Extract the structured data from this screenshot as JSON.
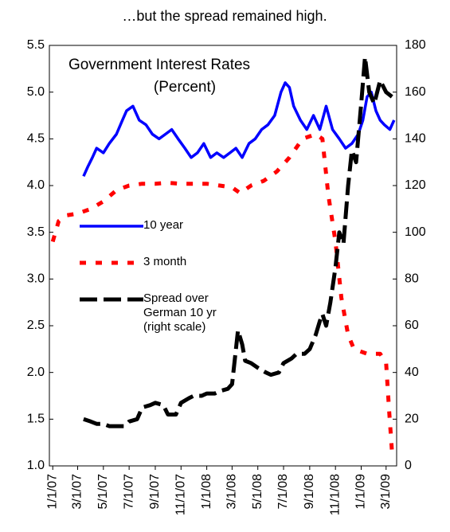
{
  "chart_data": {
    "type": "line",
    "caption": "…but the spread remained high.",
    "title": "Government Interest Rates",
    "subtitle": "(Percent)",
    "xlim": [
      "12/24/06",
      "3/26/09"
    ],
    "xticks": [
      "1/1/07",
      "3/1/07",
      "5/1/07",
      "7/1/07",
      "9/1/07",
      "11/1/07",
      "1/1/08",
      "3/1/08",
      "5/1/08",
      "7/1/08",
      "9/1/08",
      "11/1/08",
      "1/1/09",
      "3/1/09"
    ],
    "ylim": [
      1.0,
      5.5
    ],
    "yticks": [
      {
        "value": 1.0,
        "label": "1.0"
      },
      1.5,
      {
        "value": 2.0,
        "label": "2.0"
      },
      2.5,
      {
        "value": 3.0,
        "label": "3.0"
      },
      3.5,
      {
        "value": 4.0,
        "label": "4.0"
      },
      4.5,
      {
        "value": 5.0,
        "label": "5.0"
      },
      5.5
    ],
    "y2lim": [
      0,
      180
    ],
    "y2ticks": [
      0,
      20,
      40,
      60,
      80,
      100,
      120,
      140,
      160,
      180
    ],
    "series": [
      {
        "name": "10 year",
        "color": "#0000ff",
        "style": "solid",
        "x": [
          "3/15/07",
          "3/25/07",
          "4/5/07",
          "4/15/07",
          "5/1/07",
          "5/15/07",
          "6/1/07",
          "6/15/07",
          "6/25/07",
          "7/10/07",
          "7/25/07",
          "8/10/07",
          "8/25/07",
          "9/10/07",
          "9/25/07",
          "10/10/07",
          "10/25/07",
          "11/10/07",
          "11/25/07",
          "12/10/07",
          "12/25/07",
          "1/10/08",
          "1/25/08",
          "2/10/08",
          "2/25/08",
          "3/10/08",
          "3/25/08",
          "4/10/08",
          "4/25/08",
          "5/10/08",
          "5/25/08",
          "6/10/08",
          "6/25/08",
          "7/5/08",
          "7/15/08",
          "7/25/08",
          "8/10/08",
          "8/25/08",
          "9/10/08",
          "9/25/08",
          "10/10/08",
          "10/25/08",
          "11/10/08",
          "11/25/08",
          "12/10/08",
          "12/25/08",
          "1/5/09",
          "1/15/09",
          "1/25/09",
          "2/5/09",
          "2/15/09",
          "2/25/09",
          "3/10/09",
          "3/20/09"
        ],
        "values": [
          4.1,
          4.2,
          4.3,
          4.4,
          4.35,
          4.45,
          4.55,
          4.7,
          4.8,
          4.85,
          4.7,
          4.65,
          4.55,
          4.5,
          4.55,
          4.6,
          4.5,
          4.4,
          4.3,
          4.35,
          4.45,
          4.3,
          4.35,
          4.3,
          4.35,
          4.4,
          4.3,
          4.45,
          4.5,
          4.6,
          4.65,
          4.75,
          5.0,
          5.1,
          5.05,
          4.85,
          4.7,
          4.6,
          4.75,
          4.6,
          4.85,
          4.6,
          4.5,
          4.4,
          4.45,
          4.55,
          4.7,
          4.95,
          5.0,
          4.8,
          4.7,
          4.65,
          4.6,
          4.7
        ]
      },
      {
        "name": "3 month",
        "color": "#ff0000",
        "style": "dashed",
        "x": [
          "1/1/07",
          "1/15/07",
          "2/1/07",
          "3/1/07",
          "4/1/07",
          "5/1/07",
          "6/1/07",
          "7/1/07",
          "8/1/07",
          "9/1/07",
          "10/1/07",
          "11/1/07",
          "12/1/07",
          "1/1/08",
          "2/1/08",
          "3/1/08",
          "3/20/08",
          "4/15/08",
          "5/15/08",
          "6/15/08",
          "7/15/08",
          "8/15/08",
          "9/15/08",
          "10/1/08",
          "10/15/08",
          "11/1/08",
          "11/15/08",
          "12/1/08",
          "12/15/08",
          "1/15/09",
          "2/15/09",
          "3/1/09",
          "3/8/09",
          "3/15/09"
        ],
        "values": [
          3.4,
          3.62,
          3.68,
          3.7,
          3.75,
          3.83,
          3.95,
          4.0,
          4.02,
          4.02,
          4.03,
          4.02,
          4.02,
          4.02,
          4.0,
          3.98,
          3.92,
          4.0,
          4.05,
          4.15,
          4.3,
          4.5,
          4.55,
          4.5,
          3.9,
          3.4,
          2.8,
          2.4,
          2.25,
          2.2,
          2.2,
          2.1,
          1.6,
          1.15
        ]
      },
      {
        "name": "Spread over German 10 yr (right scale)",
        "color": "#000000",
        "style": "longdash",
        "axis": "y2",
        "x": [
          "3/15/07",
          "4/1/07",
          "4/15/07",
          "5/1/07",
          "5/15/07",
          "6/1/07",
          "6/20/07",
          "7/1/07",
          "7/20/07",
          "8/1/07",
          "8/20/07",
          "9/1/07",
          "9/20/07",
          "10/1/07",
          "10/20/07",
          "11/1/07",
          "11/20/07",
          "12/1/07",
          "12/20/07",
          "1/1/08",
          "1/20/08",
          "2/1/08",
          "2/20/08",
          "3/1/08",
          "3/15/08",
          "3/25/08",
          "4/1/08",
          "4/15/08",
          "5/1/08",
          "5/20/08",
          "6/1/08",
          "6/20/08",
          "7/1/08",
          "7/20/08",
          "8/1/08",
          "8/20/08",
          "9/1/08",
          "9/15/08",
          "9/25/08",
          "10/1/08",
          "10/10/08",
          "10/20/08",
          "11/1/08",
          "11/10/08",
          "11/20/08",
          "12/1/08",
          "12/10/08",
          "12/20/08",
          "1/1/09",
          "1/10/09",
          "1/20/09",
          "2/1/09",
          "2/15/09",
          "3/1/09",
          "3/15/09"
        ],
        "values": [
          20,
          19,
          18,
          18,
          17,
          17,
          17,
          19,
          20,
          25,
          26,
          27,
          26,
          22,
          22,
          27,
          29,
          30,
          30,
          31,
          31,
          32,
          33,
          35,
          58,
          52,
          45,
          44,
          42,
          40,
          39,
          40,
          44,
          46,
          48,
          48,
          50,
          56,
          62,
          65,
          60,
          70,
          85,
          100,
          95,
          120,
          135,
          130,
          155,
          175,
          160,
          155,
          165,
          160,
          158
        ]
      }
    ]
  }
}
